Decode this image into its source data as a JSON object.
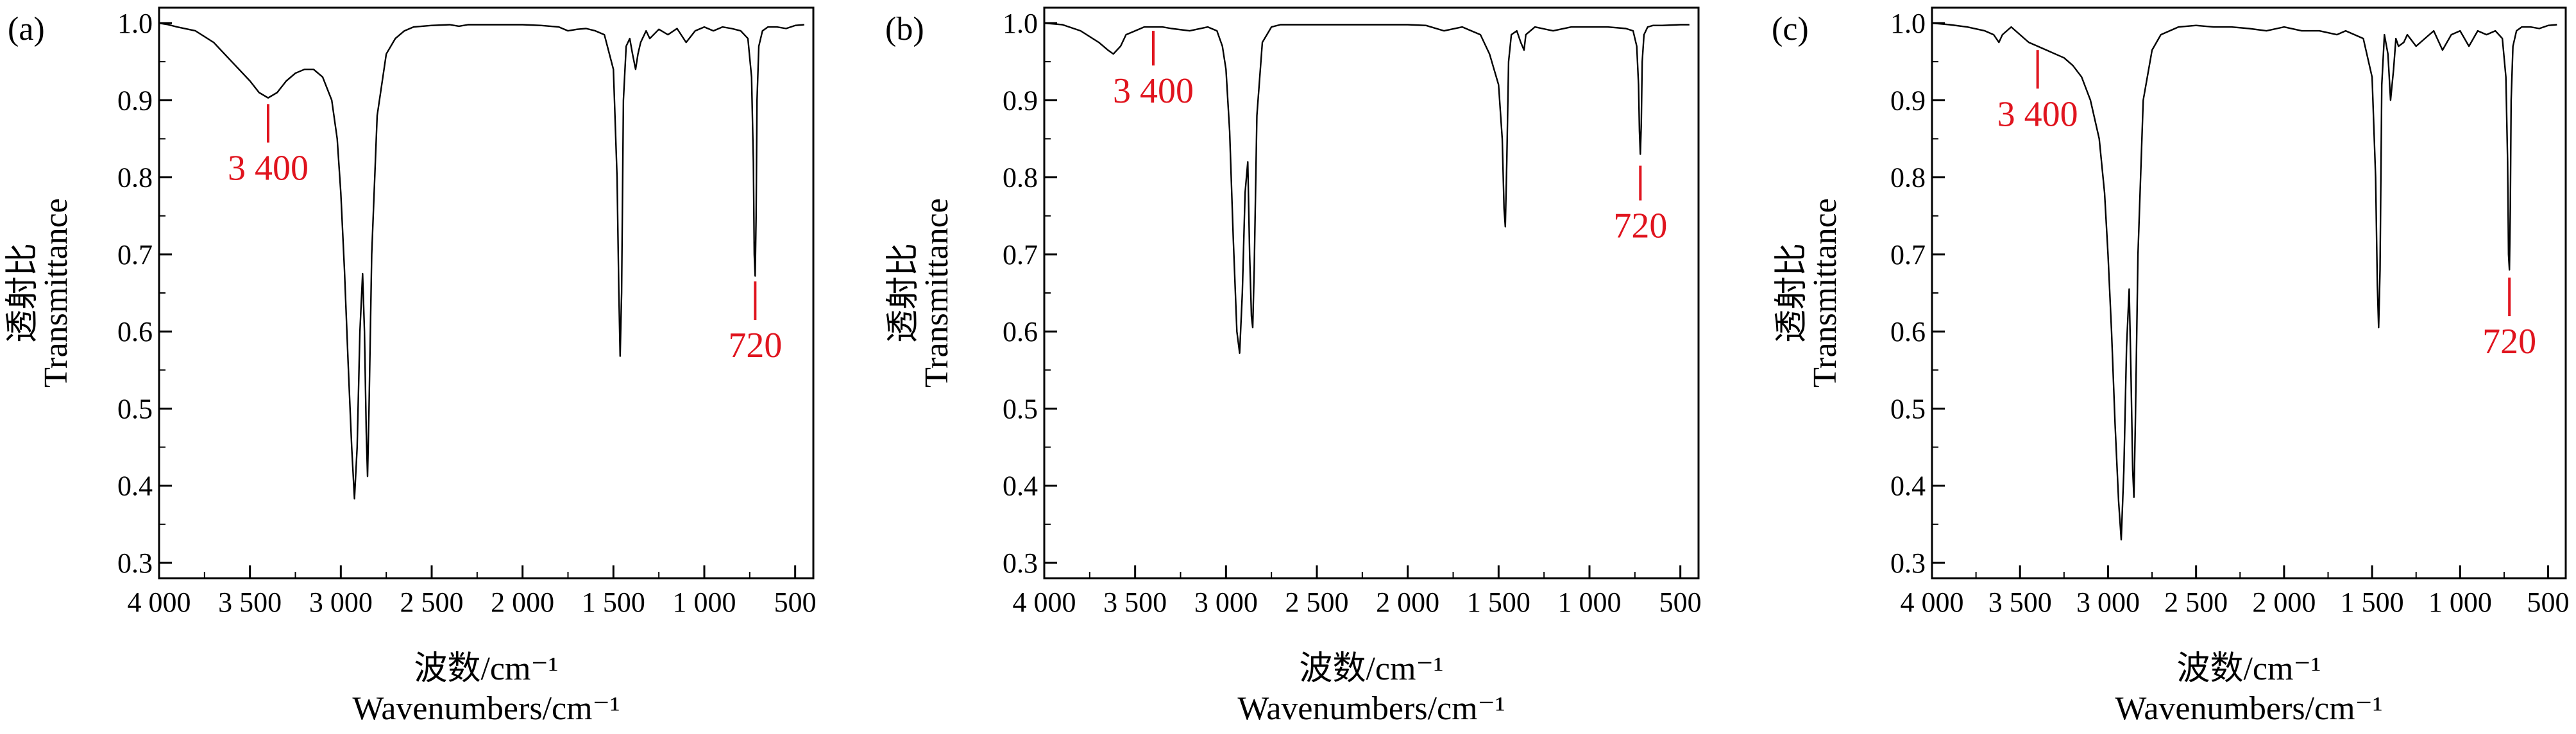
{
  "figure": {
    "panels": [
      "(a)",
      "(b)",
      "(c)"
    ],
    "ylabel_cn": "透射比",
    "ylabel_en": "Transmittance",
    "xlabel_cn": "波数/cm⁻¹",
    "xlabel_en": "Wavenumbers/cm⁻¹",
    "colors": {
      "spectrum": "#000000",
      "annotation": "#e0141e",
      "axis": "#000000"
    }
  },
  "chart_data": [
    {
      "type": "line",
      "panel": "(a)",
      "xlim": [
        4000,
        400
      ],
      "ylim": [
        0.28,
        1.02
      ],
      "xticks": [
        4000,
        3500,
        3000,
        2500,
        2000,
        1500,
        1000,
        500
      ],
      "xtick_labels": [
        "4 000",
        "3 500",
        "3 000",
        "2 500",
        "2 000",
        "1 500",
        "1 000",
        "500"
      ],
      "yticks": [
        0.3,
        0.4,
        0.5,
        0.6,
        0.7,
        0.8,
        0.9,
        1.0
      ],
      "ytick_labels": [
        "0.3",
        "0.4",
        "0.5",
        "0.6",
        "0.7",
        "0.8",
        "0.9",
        "1.0"
      ],
      "grid": false,
      "series": [
        {
          "x": [
            4000,
            3950,
            3900,
            3800,
            3700,
            3600,
            3500,
            3450,
            3400,
            3350,
            3300,
            3250,
            3200,
            3150,
            3100,
            3050,
            3020,
            3000,
            2980,
            2960,
            2940,
            2925,
            2910,
            2895,
            2880,
            2870,
            2860,
            2853,
            2845,
            2830,
            2800,
            2750,
            2700,
            2650,
            2600,
            2500,
            2400,
            2350,
            2300,
            2200,
            2100,
            2000,
            1900,
            1800,
            1750,
            1700,
            1650,
            1600,
            1550,
            1500,
            1480,
            1470,
            1463,
            1455,
            1445,
            1430,
            1410,
            1395,
            1378,
            1365,
            1350,
            1320,
            1300,
            1250,
            1200,
            1150,
            1100,
            1050,
            1000,
            950,
            900,
            850,
            800,
            760,
            740,
            730,
            725,
            720,
            715,
            710,
            700,
            680,
            650,
            600,
            550,
            500,
            450
          ],
          "y": [
            1.0,
            0.998,
            0.995,
            0.99,
            0.975,
            0.95,
            0.925,
            0.91,
            0.903,
            0.91,
            0.925,
            0.935,
            0.94,
            0.94,
            0.93,
            0.9,
            0.85,
            0.78,
            0.68,
            0.56,
            0.45,
            0.383,
            0.45,
            0.6,
            0.675,
            0.6,
            0.47,
            0.412,
            0.5,
            0.7,
            0.88,
            0.96,
            0.98,
            0.99,
            0.995,
            0.997,
            0.998,
            0.996,
            0.998,
            0.998,
            0.998,
            0.998,
            0.997,
            0.995,
            0.99,
            0.992,
            0.993,
            0.99,
            0.985,
            0.94,
            0.8,
            0.65,
            0.568,
            0.65,
            0.9,
            0.97,
            0.98,
            0.96,
            0.94,
            0.96,
            0.975,
            0.99,
            0.98,
            0.992,
            0.985,
            0.993,
            0.975,
            0.99,
            0.995,
            0.99,
            0.995,
            0.993,
            0.99,
            0.98,
            0.93,
            0.82,
            0.7,
            0.672,
            0.75,
            0.9,
            0.97,
            0.99,
            0.995,
            0.995,
            0.993,
            0.997,
            0.998
          ]
        }
      ],
      "annotations": [
        {
          "label": "3 400",
          "x": 3400,
          "y_line": [
            0.895,
            0.845
          ],
          "side": "below"
        },
        {
          "label": "720",
          "x": 720,
          "y_line": [
            0.665,
            0.615
          ],
          "side": "below"
        }
      ]
    },
    {
      "type": "line",
      "panel": "(b)",
      "xlim": [
        4000,
        400
      ],
      "ylim": [
        0.28,
        1.02
      ],
      "xticks": [
        4000,
        3500,
        3000,
        2500,
        2000,
        1500,
        1000,
        500
      ],
      "xtick_labels": [
        "4 000",
        "3 500",
        "3 000",
        "2 500",
        "2 000",
        "1 500",
        "1 000",
        "500"
      ],
      "yticks": [
        0.3,
        0.4,
        0.5,
        0.6,
        0.7,
        0.8,
        0.9,
        1.0
      ],
      "ytick_labels": [
        "0.3",
        "0.4",
        "0.5",
        "0.6",
        "0.7",
        "0.8",
        "0.9",
        "1.0"
      ],
      "grid": false,
      "series": [
        {
          "x": [
            4000,
            3900,
            3800,
            3700,
            3650,
            3620,
            3580,
            3550,
            3500,
            3450,
            3400,
            3350,
            3300,
            3200,
            3100,
            3050,
            3020,
            3000,
            2980,
            2960,
            2940,
            2925,
            2910,
            2895,
            2880,
            2870,
            2860,
            2853,
            2845,
            2830,
            2800,
            2750,
            2700,
            2600,
            2500,
            2400,
            2300,
            2200,
            2100,
            2000,
            1900,
            1800,
            1700,
            1650,
            1600,
            1550,
            1500,
            1480,
            1470,
            1463,
            1455,
            1445,
            1430,
            1400,
            1378,
            1360,
            1350,
            1300,
            1200,
            1100,
            1000,
            900,
            800,
            760,
            740,
            730,
            725,
            720,
            715,
            710,
            700,
            680,
            650,
            600,
            500,
            450
          ],
          "y": [
            1.0,
            0.998,
            0.99,
            0.975,
            0.965,
            0.96,
            0.97,
            0.985,
            0.99,
            0.995,
            0.995,
            0.995,
            0.993,
            0.99,
            0.995,
            0.99,
            0.97,
            0.94,
            0.86,
            0.72,
            0.6,
            0.572,
            0.65,
            0.78,
            0.82,
            0.7,
            0.62,
            0.605,
            0.68,
            0.88,
            0.975,
            0.995,
            0.998,
            0.998,
            0.998,
            0.998,
            0.998,
            0.998,
            0.998,
            0.998,
            0.997,
            0.99,
            0.995,
            0.99,
            0.985,
            0.96,
            0.92,
            0.85,
            0.76,
            0.736,
            0.82,
            0.95,
            0.985,
            0.99,
            0.975,
            0.965,
            0.985,
            0.995,
            0.99,
            0.995,
            0.995,
            0.995,
            0.993,
            0.99,
            0.97,
            0.92,
            0.86,
            0.83,
            0.87,
            0.95,
            0.985,
            0.995,
            0.997,
            0.997,
            0.998,
            0.998
          ]
        }
      ],
      "annotations": [
        {
          "label": "3 400",
          "x": 3400,
          "y_line": [
            0.99,
            0.945
          ],
          "side": "below"
        },
        {
          "label": "720",
          "x": 720,
          "y_line": [
            0.815,
            0.77
          ],
          "side": "below"
        }
      ]
    },
    {
      "type": "line",
      "panel": "(c)",
      "xlim": [
        4000,
        400
      ],
      "ylim": [
        0.28,
        1.02
      ],
      "xticks": [
        4000,
        3500,
        3000,
        2500,
        2000,
        1500,
        1000,
        500
      ],
      "xtick_labels": [
        "4 000",
        "3 500",
        "3 000",
        "2 500",
        "2 000",
        "1 500",
        "1 000",
        "500"
      ],
      "yticks": [
        0.3,
        0.4,
        0.5,
        0.6,
        0.7,
        0.8,
        0.9,
        1.0
      ],
      "ytick_labels": [
        "0.3",
        "0.4",
        "0.5",
        "0.6",
        "0.7",
        "0.8",
        "0.9",
        "1.0"
      ],
      "grid": false,
      "series": [
        {
          "x": [
            4000,
            3900,
            3800,
            3700,
            3650,
            3620,
            3600,
            3550,
            3500,
            3450,
            3400,
            3350,
            3300,
            3250,
            3200,
            3150,
            3100,
            3050,
            3020,
            3000,
            2980,
            2960,
            2940,
            2925,
            2910,
            2895,
            2880,
            2870,
            2860,
            2853,
            2845,
            2830,
            2800,
            2750,
            2700,
            2650,
            2600,
            2500,
            2400,
            2300,
            2200,
            2100,
            2000,
            1900,
            1800,
            1700,
            1650,
            1600,
            1550,
            1500,
            1480,
            1470,
            1463,
            1455,
            1445,
            1430,
            1410,
            1395,
            1378,
            1365,
            1350,
            1320,
            1300,
            1250,
            1200,
            1150,
            1100,
            1050,
            1000,
            950,
            900,
            850,
            800,
            760,
            740,
            730,
            725,
            720,
            715,
            710,
            700,
            680,
            650,
            600,
            550,
            500,
            450
          ],
          "y": [
            1.0,
            0.998,
            0.995,
            0.99,
            0.985,
            0.975,
            0.985,
            0.995,
            0.985,
            0.975,
            0.97,
            0.965,
            0.96,
            0.955,
            0.945,
            0.93,
            0.9,
            0.85,
            0.78,
            0.7,
            0.6,
            0.48,
            0.38,
            0.33,
            0.42,
            0.58,
            0.655,
            0.55,
            0.42,
            0.385,
            0.48,
            0.7,
            0.9,
            0.965,
            0.985,
            0.99,
            0.995,
            0.997,
            0.995,
            0.995,
            0.993,
            0.99,
            0.995,
            0.99,
            0.99,
            0.985,
            0.99,
            0.985,
            0.98,
            0.93,
            0.8,
            0.66,
            0.605,
            0.68,
            0.92,
            0.985,
            0.96,
            0.9,
            0.94,
            0.98,
            0.97,
            0.975,
            0.985,
            0.97,
            0.98,
            0.99,
            0.965,
            0.985,
            0.99,
            0.97,
            0.99,
            0.985,
            0.99,
            0.98,
            0.93,
            0.82,
            0.7,
            0.68,
            0.76,
            0.9,
            0.97,
            0.99,
            0.995,
            0.995,
            0.993,
            0.997,
            0.998
          ]
        }
      ],
      "annotations": [
        {
          "label": "3 400",
          "x": 3400,
          "y_line": [
            0.965,
            0.915
          ],
          "side": "below"
        },
        {
          "label": "720",
          "x": 720,
          "y_line": [
            0.67,
            0.62
          ],
          "side": "below"
        }
      ]
    }
  ]
}
